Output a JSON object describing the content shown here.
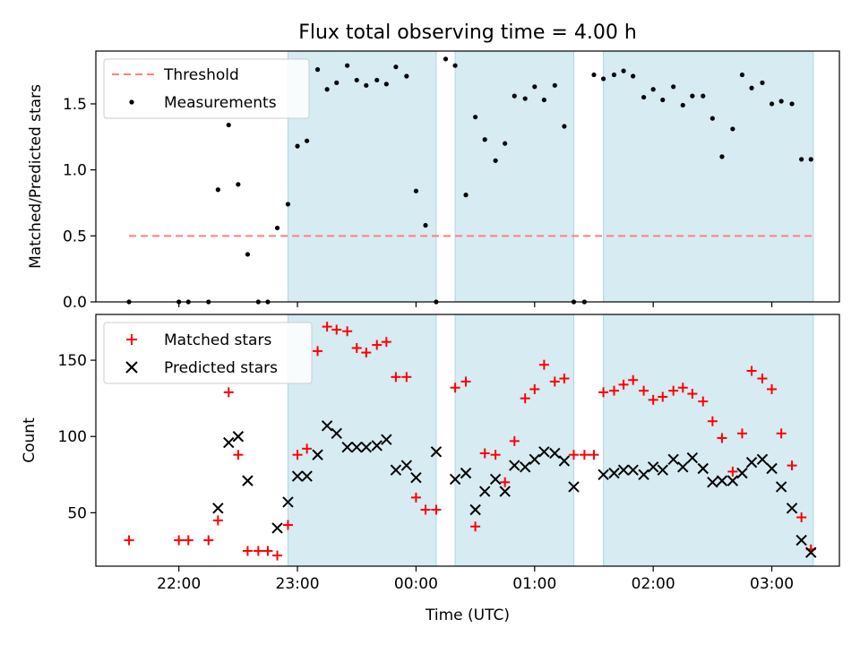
{
  "figure": {
    "title": "Flux total observing time = 4.00 h",
    "xlabel": "Time (UTC)",
    "xtick_labels": [
      "22:00",
      "23:00",
      "00:00",
      "01:00",
      "02:00",
      "03:00"
    ]
  },
  "colors": {
    "band": "#add8e6",
    "threshold": "#ff7f7f",
    "matched": "#ff0000",
    "predicted": "#000000",
    "measurement": "#000000"
  },
  "chart_data": [
    {
      "type": "scatter",
      "ylabel": "Matched/Predicted stars",
      "xunit": "hours since 21:00 UTC",
      "xlim": [
        0.3,
        6.57
      ],
      "ylim": [
        0,
        1.9
      ],
      "yticks": [
        0.0,
        0.5,
        1.0,
        1.5
      ],
      "ytick_labels": [
        "0.0",
        "0.5",
        "1.0",
        "1.5"
      ],
      "observing_bands": [
        [
          1.92,
          3.17
        ],
        [
          3.33,
          4.33
        ],
        [
          4.58,
          6.35
        ]
      ],
      "legend_position": "upper-left",
      "threshold": {
        "name": "Threshold",
        "value": 0.5,
        "x_range": [
          0.58,
          6.35
        ]
      },
      "series": [
        {
          "name": "Measurements",
          "x": [
            0.58,
            1.0,
            1.08,
            1.25,
            1.33,
            1.42,
            1.5,
            1.58,
            1.67,
            1.75,
            1.83,
            1.92,
            2.0,
            2.08,
            2.17,
            2.25,
            2.33,
            2.42,
            2.5,
            2.58,
            2.67,
            2.75,
            2.83,
            2.92,
            3.0,
            3.08,
            3.17,
            3.25,
            3.33,
            3.42,
            3.5,
            3.58,
            3.67,
            3.75,
            3.83,
            3.92,
            4.0,
            4.08,
            4.17,
            4.25,
            4.33,
            4.42,
            4.5,
            4.58,
            4.67,
            4.75,
            4.83,
            4.92,
            5.0,
            5.08,
            5.17,
            5.25,
            5.33,
            5.42,
            5.5,
            5.58,
            5.67,
            5.75,
            5.83,
            5.92,
            6.0,
            6.08,
            6.17,
            6.25,
            6.33
          ],
          "y": [
            0.0,
            0.0,
            0.0,
            0.0,
            0.85,
            1.34,
            0.89,
            0.36,
            0.0,
            0.0,
            0.56,
            0.74,
            1.18,
            1.22,
            1.76,
            1.61,
            1.66,
            1.79,
            1.68,
            1.64,
            1.68,
            1.65,
            1.78,
            1.71,
            0.84,
            0.58,
            0.0,
            1.84,
            1.79,
            0.81,
            1.4,
            1.23,
            1.07,
            1.2,
            1.56,
            1.54,
            1.63,
            1.53,
            1.64,
            1.33,
            0.0,
            0.0,
            1.72,
            1.69,
            1.72,
            1.75,
            1.71,
            1.55,
            1.61,
            1.53,
            1.63,
            1.49,
            1.56,
            1.56,
            1.39,
            1.1,
            1.31,
            1.72,
            1.62,
            1.66,
            1.5,
            1.52,
            1.5,
            1.08,
            1.08
          ]
        }
      ]
    },
    {
      "type": "scatter",
      "ylabel": "Count",
      "xunit": "hours since 21:00 UTC",
      "xlim": [
        0.3,
        6.57
      ],
      "ylim": [
        15,
        180
      ],
      "yticks": [
        50,
        100,
        150
      ],
      "ytick_labels": [
        "50",
        "100",
        "150"
      ],
      "observing_bands": [
        [
          1.92,
          3.17
        ],
        [
          3.33,
          4.33
        ],
        [
          4.58,
          6.35
        ]
      ],
      "legend_position": "upper-left",
      "series": [
        {
          "name": "Matched stars",
          "marker": "plus",
          "x": [
            0.58,
            1.0,
            1.08,
            1.25,
            1.33,
            1.42,
            1.5,
            1.58,
            1.67,
            1.75,
            1.83,
            1.92,
            2.0,
            2.08,
            2.17,
            2.25,
            2.33,
            2.42,
            2.5,
            2.58,
            2.67,
            2.75,
            2.83,
            2.92,
            3.0,
            3.08,
            3.17,
            3.33,
            3.42,
            3.5,
            3.58,
            3.67,
            3.75,
            3.83,
            3.92,
            4.0,
            4.08,
            4.17,
            4.25,
            4.33,
            4.42,
            4.5,
            4.58,
            4.67,
            4.75,
            4.83,
            4.92,
            5.0,
            5.08,
            5.17,
            5.25,
            5.33,
            5.42,
            5.5,
            5.58,
            5.67,
            5.75,
            5.83,
            5.92,
            6.0,
            6.08,
            6.17,
            6.25,
            6.33
          ],
          "y": [
            32,
            32,
            32,
            32,
            45,
            129,
            88,
            25,
            25,
            25,
            22,
            42,
            88,
            92,
            156,
            172,
            170,
            169,
            158,
            155,
            160,
            162,
            139,
            139,
            60,
            52,
            52,
            132,
            136,
            41,
            89,
            88,
            70,
            97,
            125,
            131,
            147,
            136,
            138,
            88,
            88,
            88,
            129,
            130,
            134,
            137,
            130,
            124,
            126,
            130,
            132,
            128,
            123,
            110,
            99,
            77,
            102,
            143,
            138,
            131,
            102,
            81,
            47,
            26
          ]
        },
        {
          "name": "Predicted stars",
          "marker": "x",
          "x": [
            1.33,
            1.42,
            1.5,
            1.58,
            1.83,
            1.92,
            2.0,
            2.08,
            2.17,
            2.25,
            2.33,
            2.42,
            2.5,
            2.58,
            2.67,
            2.75,
            2.83,
            2.92,
            3.0,
            3.17,
            3.33,
            3.42,
            3.5,
            3.58,
            3.67,
            3.75,
            3.83,
            3.92,
            4.0,
            4.08,
            4.17,
            4.25,
            4.33,
            4.58,
            4.67,
            4.75,
            4.83,
            4.92,
            5.0,
            5.08,
            5.17,
            5.25,
            5.33,
            5.42,
            5.5,
            5.58,
            5.67,
            5.75,
            5.83,
            5.92,
            6.0,
            6.08,
            6.17,
            6.25,
            6.33
          ],
          "y": [
            53,
            96,
            100,
            71,
            40,
            57,
            74,
            74,
            88,
            107,
            102,
            93,
            93,
            93,
            94,
            98,
            78,
            81,
            73,
            90,
            72,
            76,
            52,
            64,
            72,
            64,
            81,
            80,
            85,
            90,
            89,
            84,
            67,
            75,
            76,
            78,
            78,
            75,
            80,
            78,
            85,
            80,
            86,
            79,
            70,
            71,
            71,
            76,
            83,
            85,
            79,
            67,
            53,
            32,
            24
          ]
        }
      ]
    }
  ]
}
